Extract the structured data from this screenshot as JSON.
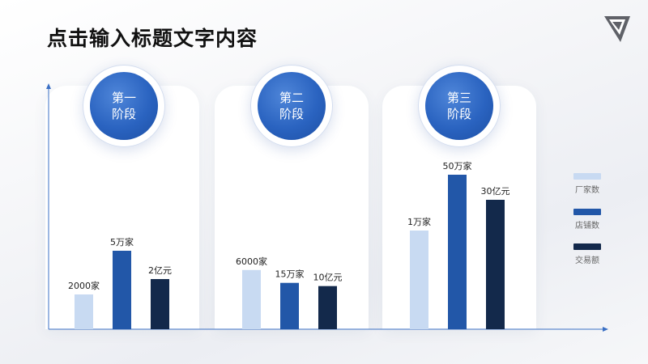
{
  "slide": {
    "title": "点击输入标题文字内容",
    "logo_icon": "triangle-logo-icon"
  },
  "stages": [
    {
      "label": "第一\n阶段"
    },
    {
      "label": "第二\n阶段"
    },
    {
      "label": "第三\n阶段"
    }
  ],
  "colors": {
    "series1": "#c8daf2",
    "series2": "#2257a8",
    "series3": "#13294b",
    "axis": "#3a6fc4",
    "badge": "#2a63c0"
  },
  "chart_data": {
    "type": "bar",
    "categories": [
      "第一阶段",
      "第二阶段",
      "第三阶段"
    ],
    "series": [
      {
        "name": "厂家数",
        "values": [
          2000,
          6000,
          10000
        ],
        "labels": [
          "2000家",
          "6000家",
          "1万家"
        ]
      },
      {
        "name": "店铺数",
        "values": [
          50000,
          150000,
          500000
        ],
        "labels": [
          "5万家",
          "15万家",
          "50万家"
        ]
      },
      {
        "name": "交易额",
        "values": [
          2,
          10,
          30
        ],
        "labels": [
          "2亿元",
          "10亿元",
          "30亿元"
        ]
      }
    ],
    "legend": [
      "厂家数",
      "店铺数",
      "交易额"
    ],
    "legend_position": "right"
  }
}
